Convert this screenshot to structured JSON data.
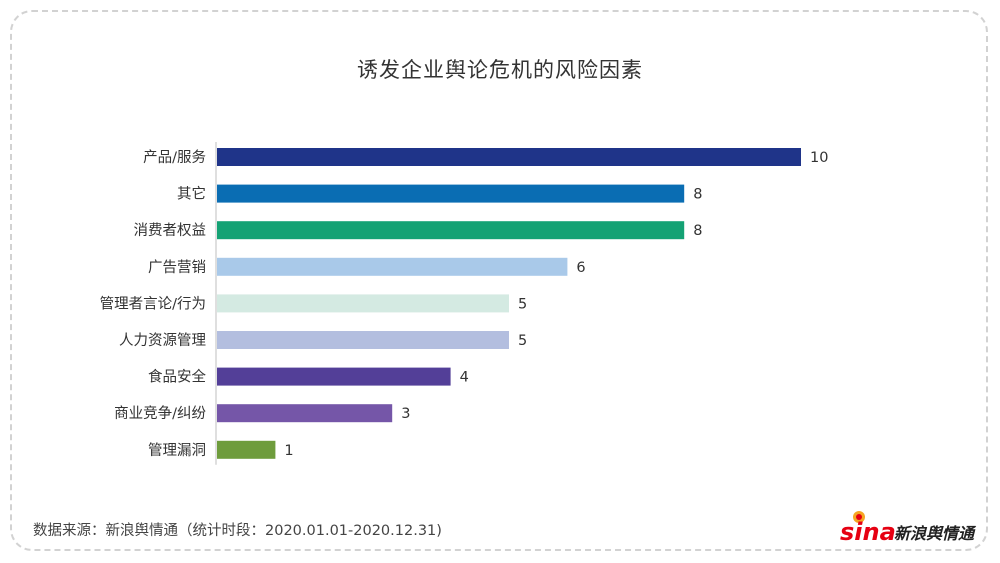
{
  "chart_data": {
    "type": "bar",
    "orientation": "horizontal",
    "title": "诱发企业舆论危机的风险因素",
    "categories": [
      "产品/服务",
      "其它",
      "消费者权益",
      "广告营销",
      "管理者言论/行为",
      "人力资源管理",
      "食品安全",
      "商业竞争/纠纷",
      "管理漏洞"
    ],
    "values": [
      10,
      8,
      8,
      6,
      5,
      5,
      4,
      3,
      1
    ],
    "colors": [
      "#1f3489",
      "#0a6db3",
      "#14a274",
      "#a9c9e9",
      "#d4eae2",
      "#b3bedf",
      "#533f98",
      "#7556a8",
      "#6e9c3c"
    ],
    "xlim": [
      0,
      10
    ],
    "grid": false,
    "legend": "none"
  },
  "footer": {
    "source_note": "数据来源：新浪舆情通（统计时段：2020.01.01-2020.12.31)"
  },
  "brand": {
    "logo_text": "sina",
    "logo_cn": "新浪舆情通",
    "accent": "#e60012"
  }
}
